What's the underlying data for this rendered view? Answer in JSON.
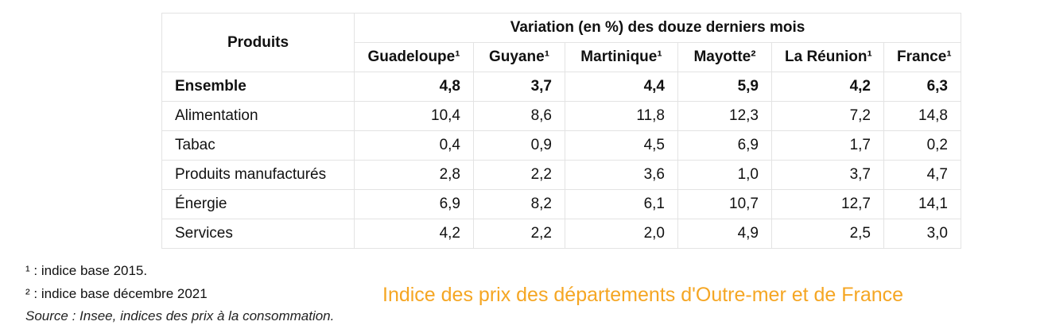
{
  "chart_data": {
    "type": "table",
    "row_header": "Produits",
    "column_group_header": "Variation (en %) des douze derniers mois",
    "columns": [
      {
        "name": "Guadeloupe",
        "mark": "1"
      },
      {
        "name": "Guyane",
        "mark": "1"
      },
      {
        "name": "Martinique",
        "mark": "1"
      },
      {
        "name": "Mayotte",
        "mark": "2"
      },
      {
        "name": "La Réunion",
        "mark": "1"
      },
      {
        "name": "France",
        "mark": "1"
      }
    ],
    "rows": [
      {
        "label": "Ensemble",
        "values": [
          "4,8",
          "3,7",
          "4,4",
          "5,9",
          "4,2",
          "6,3"
        ],
        "bold": true
      },
      {
        "label": "Alimentation",
        "values": [
          "10,4",
          "8,6",
          "11,8",
          "12,3",
          "7,2",
          "14,8"
        ]
      },
      {
        "label": "Tabac",
        "values": [
          "0,4",
          "0,9",
          "4,5",
          "6,9",
          "1,7",
          "0,2"
        ]
      },
      {
        "label": "Produits manufacturés",
        "values": [
          "2,8",
          "2,2",
          "3,6",
          "1,0",
          "3,7",
          "4,7"
        ]
      },
      {
        "label": "Énergie",
        "values": [
          "6,9",
          "8,2",
          "6,1",
          "10,7",
          "12,7",
          "14,1"
        ]
      },
      {
        "label": "Services",
        "values": [
          "4,2",
          "2,2",
          "2,0",
          "4,9",
          "2,5",
          "3,0"
        ]
      }
    ],
    "title": "Indice des prix des départements d'Outre-mer et de France"
  },
  "footnotes": [
    {
      "mark": "¹",
      "text": " : indice base 2015."
    },
    {
      "mark": "²",
      "text": " : indice base décembre 2021"
    }
  ],
  "source": "Source : Insee, indices des prix à la consommation.",
  "colors": {
    "caption": "#f5a623",
    "grid": "#e3e3e3"
  }
}
